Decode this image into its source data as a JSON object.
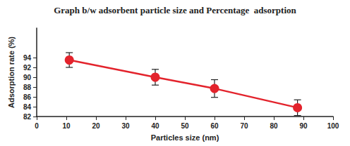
{
  "chart_data": {
    "type": "line",
    "title": "Graph b/w adsorbent particle size and Percentage  adsorption",
    "x_label": "Particles size (nm)",
    "y_label": "Adsorption rate (%)",
    "x": [
      11,
      40,
      60,
      88
    ],
    "values": [
      93.5,
      90,
      87.7,
      83.8
    ],
    "errors": [
      1.5,
      1.6,
      1.8,
      1.6
    ],
    "color": "#e3232c",
    "marker": "circle",
    "line_style": "solid",
    "xlim": [
      0,
      100
    ],
    "xticks": [
      0,
      10,
      20,
      30,
      40,
      50,
      60,
      70,
      80,
      90,
      100
    ],
    "ylim": [
      82,
      100
    ],
    "yticks": [
      82,
      84,
      86,
      88,
      90,
      92,
      94
    ],
    "grid": false
  }
}
